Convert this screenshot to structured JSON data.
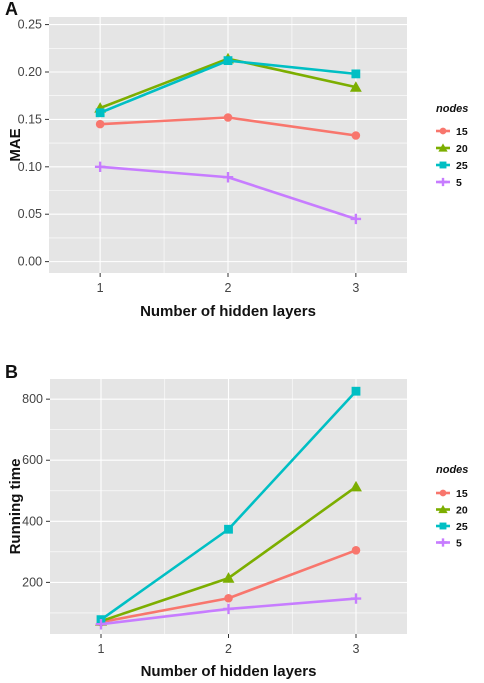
{
  "chart_data": [
    {
      "panel": "A",
      "type": "line",
      "x": [
        1,
        2,
        3
      ],
      "xlabel": "Number of hidden layers",
      "ylabel": "MAE",
      "xlim": [
        0.6,
        3.4
      ],
      "ylim": [
        -0.012,
        0.258
      ],
      "xticks": [
        "1",
        "2",
        "3"
      ],
      "yticks": [
        "0.00",
        "0.05",
        "0.10",
        "0.15",
        "0.20",
        "0.25"
      ],
      "grid": true,
      "legend": {
        "title": "nodes",
        "position": "right"
      },
      "series": [
        {
          "name": "15",
          "color": "#f8766d",
          "marker": "circle",
          "values": [
            0.145,
            0.152,
            0.133
          ]
        },
        {
          "name": "20",
          "color": "#7cae00",
          "marker": "triangle",
          "values": [
            0.162,
            0.214,
            0.184
          ]
        },
        {
          "name": "25",
          "color": "#00bfc4",
          "marker": "square",
          "values": [
            0.157,
            0.212,
            0.198
          ]
        },
        {
          "name": "5",
          "color": "#c77cff",
          "marker": "plus",
          "values": [
            0.1,
            0.089,
            0.045
          ]
        }
      ]
    },
    {
      "panel": "B",
      "type": "line",
      "x": [
        1,
        2,
        3
      ],
      "xlabel": "Number of hidden layers",
      "ylabel": "Running time",
      "xlim": [
        0.6,
        3.4
      ],
      "ylim": [
        31,
        866
      ],
      "xticks": [
        "1",
        "2",
        "3"
      ],
      "yticks": [
        "200",
        "400",
        "600",
        "800"
      ],
      "grid": true,
      "legend": {
        "title": "nodes",
        "position": "right"
      },
      "series": [
        {
          "name": "15",
          "color": "#f8766d",
          "marker": "circle",
          "values": [
            70,
            148,
            305
          ]
        },
        {
          "name": "20",
          "color": "#7cae00",
          "marker": "triangle",
          "values": [
            73,
            214,
            513
          ]
        },
        {
          "name": "25",
          "color": "#00bfc4",
          "marker": "square",
          "values": [
            78,
            374,
            826
          ]
        },
        {
          "name": "5",
          "color": "#c77cff",
          "marker": "plus",
          "values": [
            63,
            113,
            147
          ]
        }
      ]
    }
  ]
}
